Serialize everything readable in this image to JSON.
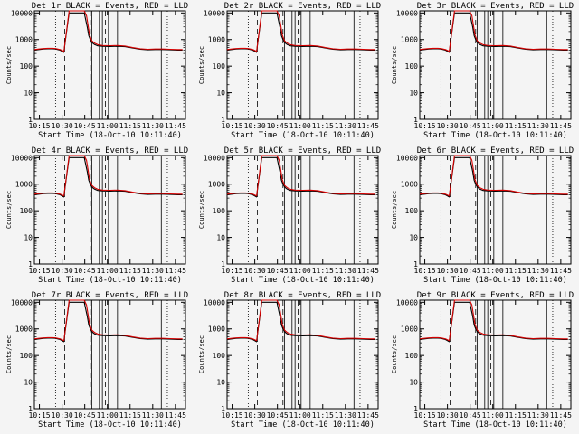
{
  "colors": {
    "events": "#000000",
    "lld": "#d40000",
    "background": "#f4f4f4"
  },
  "y_label": "Counts/sec",
  "x_label": "Start Time (18-Oct-10 10:11:40)",
  "panels": [
    {
      "title": "Det 1r BLACK = Events, RED = LLD"
    },
    {
      "title": "Det 2r BLACK = Events, RED = LLD"
    },
    {
      "title": "Det 3r BLACK = Events, RED = LLD"
    },
    {
      "title": "Det 4r BLACK = Events, RED = LLD"
    },
    {
      "title": "Det 5r BLACK = Events, RED = LLD"
    },
    {
      "title": "Det 6r BLACK = Events, RED = LLD"
    },
    {
      "title": "Det 7r BLACK = Events, RED = LLD"
    },
    {
      "title": "Det 8r BLACK = Events, RED = LLD"
    },
    {
      "title": "Det 9r BLACK = Events, RED = LLD"
    }
  ],
  "chart_data": {
    "type": "line",
    "scale": "log",
    "grid": false,
    "xlim_minutes_after_10_11_40": [
      0,
      100
    ],
    "ylim": [
      1,
      12000
    ],
    "x_tick_labels": [
      "10:15",
      "10:30",
      "10:45",
      "11:00",
      "11:15",
      "11:30",
      "11:45"
    ],
    "x_tick_values": [
      3.33,
      18.33,
      33.33,
      48.33,
      63.33,
      78.33,
      93.33
    ],
    "y_tick_labels": [
      "1",
      "10",
      "100",
      "1000",
      "10000"
    ],
    "y_tick_values": [
      1,
      10,
      100,
      1000,
      10000
    ],
    "dotted_verticals": [
      14,
      88
    ],
    "dashed_verticals": [
      20,
      37,
      47
    ],
    "solid_verticals": [
      38,
      43,
      45,
      49,
      55,
      84
    ],
    "series": [
      {
        "name": "Events",
        "color": "#000000",
        "x": [
          0,
          3,
          6,
          9,
          12,
          14,
          17,
          19.5,
          20.5,
          23,
          25,
          27,
          29,
          30,
          31,
          33,
          35,
          36,
          37,
          38,
          39,
          40,
          42,
          45,
          50,
          55,
          60,
          65,
          70,
          75,
          80,
          85,
          90,
          95,
          98
        ],
        "y": [
          400,
          420,
          440,
          450,
          450,
          440,
          400,
          330,
          900,
          10000,
          10000,
          10000,
          10000,
          10000,
          10000,
          10000,
          3000,
          1400,
          1000,
          800,
          700,
          640,
          580,
          560,
          550,
          560,
          540,
          480,
          430,
          410,
          420,
          420,
          410,
          400,
          400
        ]
      },
      {
        "name": "LLD",
        "color": "#d40000",
        "x": [
          0,
          3,
          6,
          9,
          12,
          14,
          17,
          19.5,
          20.5,
          23,
          25,
          27,
          29,
          31,
          33,
          34.5,
          35.5,
          36.5,
          38,
          40,
          42,
          45,
          50,
          55,
          60,
          65,
          70,
          75,
          80,
          85,
          90,
          95,
          98
        ],
        "y": [
          420,
          440,
          460,
          470,
          470,
          460,
          420,
          360,
          950,
          12000,
          12000,
          12000,
          12000,
          12000,
          12000,
          8000,
          3500,
          1500,
          900,
          720,
          640,
          600,
          590,
          600,
          570,
          500,
          450,
          430,
          440,
          440,
          430,
          420,
          420
        ]
      }
    ]
  }
}
